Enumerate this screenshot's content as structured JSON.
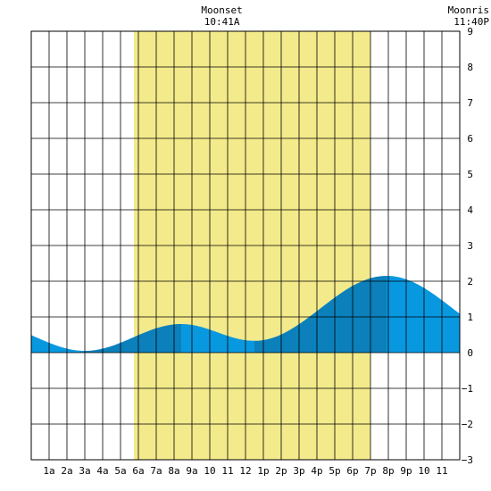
{
  "chart_data": {
    "type": "area",
    "x_tick_labels": [
      "1a",
      "2a",
      "3a",
      "4a",
      "5a",
      "6a",
      "7a",
      "8a",
      "9a",
      "10",
      "11",
      "12",
      "1p",
      "2p",
      "3p",
      "4p",
      "5p",
      "6p",
      "7p",
      "8p",
      "9p",
      "10",
      "11"
    ],
    "x_range_hours": [
      0,
      24
    ],
    "ylim": [
      -3,
      9
    ],
    "y_ticks": [
      9,
      8,
      7,
      6,
      5,
      4,
      3,
      2,
      1,
      0,
      -1,
      -2,
      -3
    ],
    "grid": true,
    "daylight_hours": [
      5.75,
      19.0
    ],
    "events": [
      {
        "label": "Moonset",
        "time": "10:41A",
        "hour": 10.68
      },
      {
        "label": "Moonris",
        "time": "11:40P",
        "hour": 23.67
      }
    ],
    "tide_extremes": [
      {
        "hour": 3.0,
        "value": 0.05,
        "kind": "low"
      },
      {
        "hour": 8.4,
        "value": 0.8,
        "kind": "high"
      },
      {
        "hour": 12.5,
        "value": 0.33,
        "kind": "low"
      },
      {
        "hour": 19.9,
        "value": 2.15,
        "kind": "high"
      }
    ],
    "start_value": 0.68,
    "end_value": 1.0,
    "colors": {
      "daylight": "#f3ea8c",
      "tide_light": "#0898e0",
      "tide_dark": "#0b80bb",
      "grid": "#000000"
    }
  }
}
